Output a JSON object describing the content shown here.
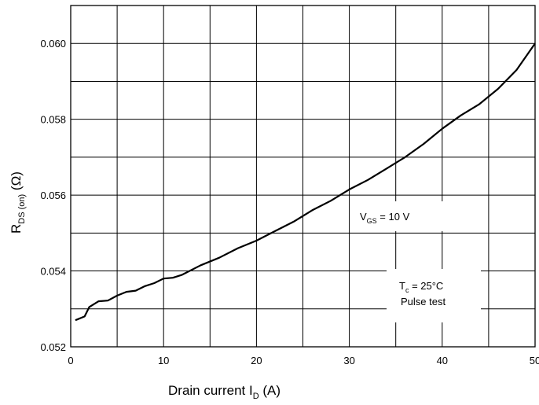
{
  "chart_data": {
    "type": "line",
    "xlabel": "Drain current I_D (A)",
    "xlabel_main": "Drain current I",
    "xlabel_sub": "D",
    "xlabel_unit": " (A)",
    "ylabel": "R_DS(on) (Ω)",
    "ylabel_main": "R",
    "ylabel_sub": "DS (on)",
    "ylabel_unit": " (Ω)",
    "xlim": [
      0,
      50
    ],
    "ylim": [
      0.052,
      0.061
    ],
    "x_ticks": [
      0,
      10,
      20,
      30,
      40,
      50
    ],
    "x_tick_labels": [
      "0",
      "10",
      "20",
      "30",
      "40",
      "50"
    ],
    "y_ticks": [
      0.052,
      0.054,
      0.056,
      0.058,
      0.06
    ],
    "y_tick_labels": [
      "0.052",
      "0.054",
      "0.056",
      "0.058",
      "0.060"
    ],
    "x_grid": [
      0,
      5,
      10,
      15,
      20,
      25,
      30,
      35,
      40,
      45,
      50
    ],
    "y_grid": [
      0.052,
      0.053,
      0.054,
      0.055,
      0.056,
      0.057,
      0.058,
      0.059,
      0.06,
      0.061
    ],
    "grid": true,
    "series": [
      {
        "x": [
          0.5,
          1.5,
          2,
          3,
          4,
          5,
          6,
          7,
          8,
          9,
          10,
          11,
          12,
          14,
          16,
          18,
          20,
          22,
          24,
          26,
          28,
          30,
          32,
          34,
          36,
          38,
          40,
          42,
          44,
          46,
          48,
          50
        ],
        "values": [
          0.0527,
          0.0528,
          0.05305,
          0.0532,
          0.05322,
          0.05335,
          0.05345,
          0.05348,
          0.0536,
          0.05368,
          0.0538,
          0.05382,
          0.0539,
          0.05415,
          0.05435,
          0.0546,
          0.0548,
          0.05505,
          0.0553,
          0.0556,
          0.05585,
          0.05615,
          0.0564,
          0.0567,
          0.057,
          0.05735,
          0.05775,
          0.0581,
          0.0584,
          0.0588,
          0.0593,
          0.06
        ]
      }
    ],
    "annotations": [
      {
        "main": "V",
        "sub": "GS",
        "rest": " = 10 V"
      },
      {
        "main": "T",
        "sub": "c",
        "rest": " = 25°C"
      },
      {
        "text": "Pulse test"
      }
    ]
  }
}
